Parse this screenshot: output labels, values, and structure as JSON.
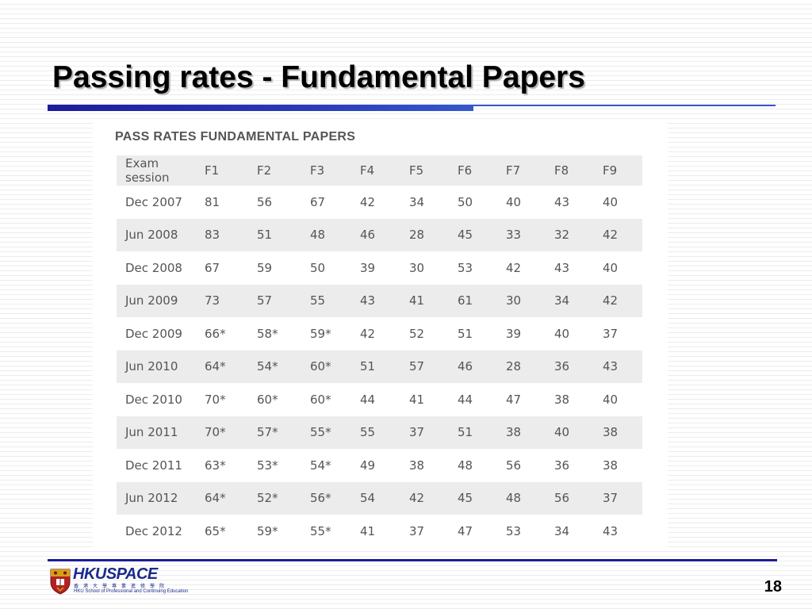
{
  "slide": {
    "title": "Passing rates - Fundamental Papers",
    "page_number": "18"
  },
  "table": {
    "heading": "PASS RATES FUNDAMENTAL PAPERS",
    "columns": [
      "Exam session",
      "F1",
      "F2",
      "F3",
      "F4",
      "F5",
      "F6",
      "F7",
      "F8",
      "F9"
    ],
    "rows": [
      [
        "Dec 2007",
        "81",
        "56",
        "67",
        "42",
        "34",
        "50",
        "40",
        "43",
        "40"
      ],
      [
        "Jun 2008",
        "83",
        "51",
        "48",
        "46",
        "28",
        "45",
        "33",
        "32",
        "42"
      ],
      [
        "Dec 2008",
        "67",
        "59",
        "50",
        "39",
        "30",
        "53",
        "42",
        "43",
        "40"
      ],
      [
        "Jun 2009",
        "73",
        "57",
        "55",
        "43",
        "41",
        "61",
        "30",
        "34",
        "42"
      ],
      [
        "Dec 2009",
        "66*",
        "58*",
        "59*",
        "42",
        "52",
        "51",
        "39",
        "40",
        "37"
      ],
      [
        "Jun 2010",
        "64*",
        "54*",
        "60*",
        "51",
        "57",
        "46",
        "28",
        "36",
        "43"
      ],
      [
        "Dec 2010",
        "70*",
        "60*",
        "60*",
        "44",
        "41",
        "44",
        "47",
        "38",
        "40"
      ],
      [
        "Jun 2011",
        "70*",
        "57*",
        "55*",
        "55",
        "37",
        "51",
        "38",
        "40",
        "38"
      ],
      [
        "Dec 2011",
        "63*",
        "53*",
        "54*",
        "49",
        "38",
        "48",
        "56",
        "36",
        "38"
      ],
      [
        "Jun 2012",
        "64*",
        "52*",
        "56*",
        "54",
        "42",
        "45",
        "48",
        "56",
        "37"
      ],
      [
        "Dec 2012",
        "65*",
        "59*",
        "55*",
        "41",
        "37",
        "47",
        "53",
        "34",
        "43"
      ]
    ]
  },
  "logo": {
    "name": "HKUSPACE",
    "chinese": "香港大學專業進修學院",
    "english": "HKU School of Professional and Continuing Education"
  },
  "colors": {
    "accent": "#1c1c9c",
    "row_stripe": "#ececec",
    "crest_red": "#b22222",
    "crest_gold": "#d4a017"
  },
  "icons": {
    "crest": "university-crest-icon"
  }
}
